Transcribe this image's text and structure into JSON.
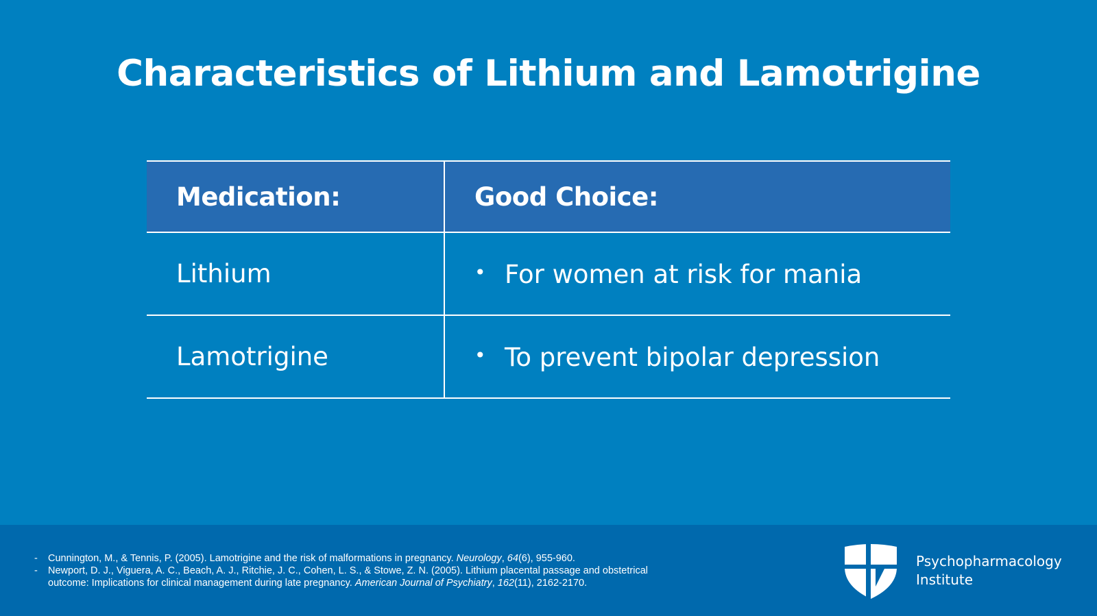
{
  "title": "Characteristics of Lithium and Lamotrigine",
  "table": {
    "headers": [
      "Medication:",
      "Good Choice:"
    ],
    "rows": [
      {
        "medication": "Lithium",
        "choice": "For women at risk for mania"
      },
      {
        "medication": "Lamotrigine",
        "choice": "To prevent bipolar depression"
      }
    ],
    "bullet": "•"
  },
  "references": [
    {
      "dash": "-",
      "before": "Cunnington, M., & Tennis, P. (2005). Lamotrigine and the risk of malformations in pregnancy. ",
      "journal": "Neurology",
      "sep": ", ",
      "volume": "64",
      "after": "(6), 955-960."
    },
    {
      "dash": "-",
      "before": "Newport, D. J., Viguera, A. C., Beach, A. J., Ritchie, J. C., Cohen, L. S., & Stowe, Z. N. (2005). Lithium placental passage and obstetrical outcome: Implications for clinical management during late pregnancy. ",
      "journal": "American Journal of Psychiatry",
      "sep": ", ",
      "volume": "162",
      "after": "(11), 2162-2170."
    }
  ],
  "logo": {
    "line1": "Psychopharmacology",
    "line2": "Institute",
    "icon": "shield-cross-icon"
  },
  "colors": {
    "background": "#0080c0",
    "header_row": "#266bb2",
    "footer": "#0069ad",
    "text": "#ffffff"
  }
}
